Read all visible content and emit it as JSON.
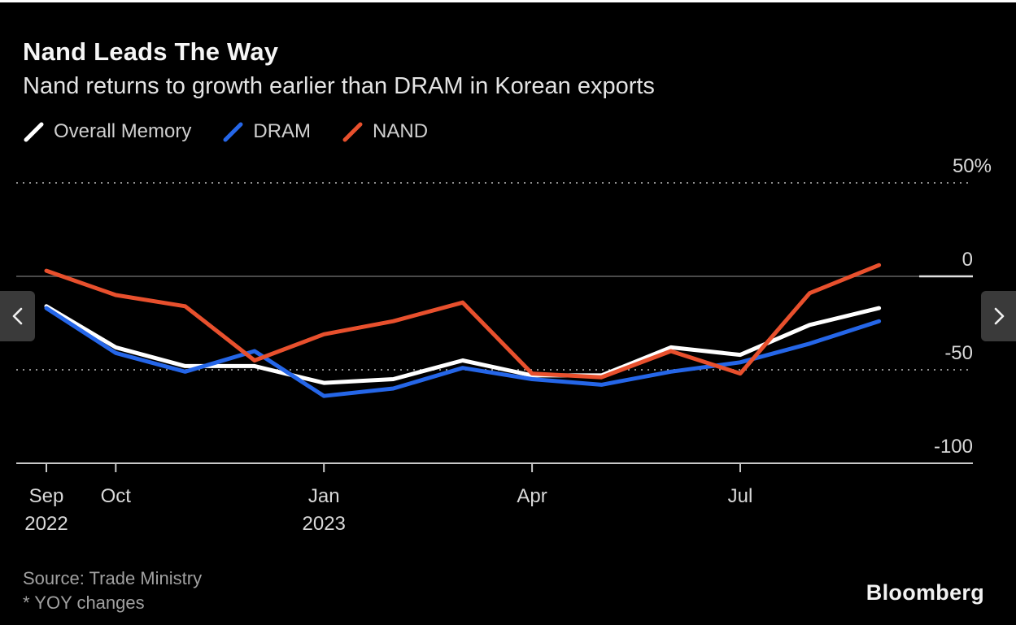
{
  "page": {
    "background": "#000000",
    "accent_blue": "#2566e8",
    "accent_orange": "#e8502d"
  },
  "chart_data": {
    "type": "line",
    "title": "Nand Leads The Way",
    "subtitle": "Nand returns to growth earlier than DRAM in Korean exports",
    "unit": "%",
    "ylim": [
      -100,
      50
    ],
    "grid": "horizontal",
    "legend_position": "top-left",
    "x": [
      "Sep 2022",
      "Oct 2022",
      "Nov 2022",
      "Dec 2022",
      "Jan 2023",
      "Feb 2023",
      "Mar 2023",
      "Apr 2023",
      "May 2023",
      "Jun 2023",
      "Jul 2023",
      "Aug 2023",
      "Sep 2023"
    ],
    "series": [
      {
        "name": "Overall Memory",
        "color": "#ffffff",
        "values": [
          -16,
          -38,
          -48,
          -48,
          -57,
          -55,
          -45,
          -53,
          -53,
          -38,
          -42,
          -26,
          -17
        ]
      },
      {
        "name": "DRAM",
        "color": "#2566e8",
        "values": [
          -17,
          -41,
          -51,
          -40,
          -64,
          -60,
          -49,
          -55,
          -58,
          -51,
          -46,
          -36,
          -24
        ]
      },
      {
        "name": "NAND",
        "color": "#e8502d",
        "values": [
          3,
          -10,
          -16,
          -45,
          -31,
          -24,
          -14,
          -52,
          -54,
          -40,
          -52,
          -9,
          6
        ]
      }
    ],
    "y_ticks": [
      {
        "label": "50%",
        "value": 50,
        "style": "dotted"
      },
      {
        "label": "0",
        "value": 0,
        "style": "zero"
      },
      {
        "label": "-50",
        "value": -50,
        "style": "dotted"
      },
      {
        "label": "-100",
        "value": -100,
        "style": "baseline"
      }
    ],
    "x_ticks": [
      {
        "index": 0,
        "label": "Sep",
        "year": "2022"
      },
      {
        "index": 1,
        "label": "Oct",
        "year": ""
      },
      {
        "index": 4,
        "label": "Jan",
        "year": "2023"
      },
      {
        "index": 7,
        "label": "Apr",
        "year": ""
      },
      {
        "index": 10,
        "label": "Jul",
        "year": ""
      }
    ]
  },
  "footer": {
    "source": "Source: Trade Ministry",
    "note": "* YOY changes",
    "brand": "Bloomberg"
  }
}
